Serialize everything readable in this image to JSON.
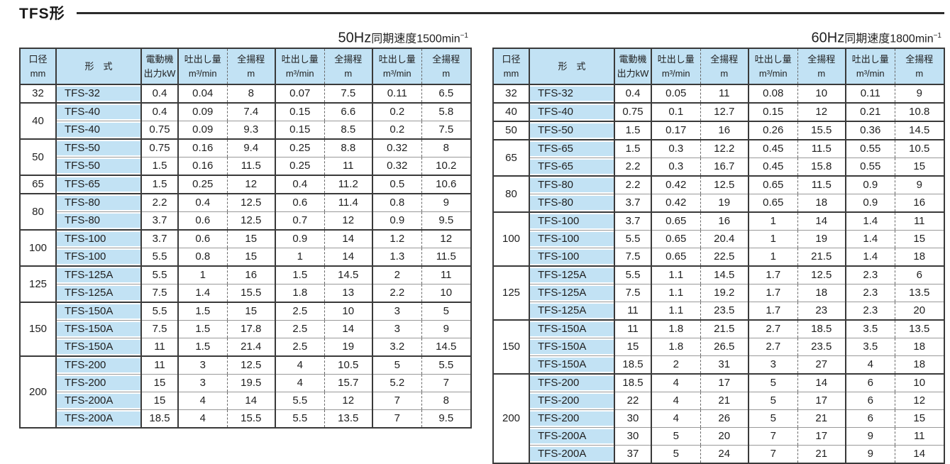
{
  "page": {
    "title": "TFS形"
  },
  "colors": {
    "table_header_bg": "#c2e2f4",
    "border_dark": "#3a3a3a",
    "row_divider": "#999999",
    "dashed_divider": "#666666",
    "text": "#1f1f1f",
    "rule": "#2b2b2b"
  },
  "header_labels": {
    "bore": [
      "口径",
      "mm"
    ],
    "model": "形　式",
    "motor": [
      "電動機",
      "出力kW"
    ],
    "discharge": [
      "吐出し量",
      "m³/min"
    ],
    "head": [
      "全揚程",
      "m"
    ]
  },
  "tables": [
    {
      "id": "50hz",
      "subtitle": {
        "freq": "50Hz",
        "label": "同期速度",
        "speed": "1500min",
        "sup": "−1"
      },
      "groups": [
        {
          "bore": "32",
          "rows": [
            [
              "TFS-32",
              "0.4",
              "0.04",
              "8",
              "0.07",
              "7.5",
              "0.11",
              "6.5"
            ]
          ]
        },
        {
          "bore": "40",
          "rows": [
            [
              "TFS-40",
              "0.4",
              "0.09",
              "7.4",
              "0.15",
              "6.6",
              "0.2",
              "5.8"
            ],
            [
              "TFS-40",
              "0.75",
              "0.09",
              "9.3",
              "0.15",
              "8.5",
              "0.2",
              "7.5"
            ]
          ]
        },
        {
          "bore": "50",
          "rows": [
            [
              "TFS-50",
              "0.75",
              "0.16",
              "9.4",
              "0.25",
              "8.8",
              "0.32",
              "8"
            ],
            [
              "TFS-50",
              "1.5",
              "0.16",
              "11.5",
              "0.25",
              "11",
              "0.32",
              "10.2"
            ]
          ]
        },
        {
          "bore": "65",
          "rows": [
            [
              "TFS-65",
              "1.5",
              "0.25",
              "12",
              "0.4",
              "11.2",
              "0.5",
              "10.6"
            ]
          ]
        },
        {
          "bore": "80",
          "rows": [
            [
              "TFS-80",
              "2.2",
              "0.4",
              "12.5",
              "0.6",
              "11.4",
              "0.8",
              "9"
            ],
            [
              "TFS-80",
              "3.7",
              "0.6",
              "12.5",
              "0.7",
              "12",
              "0.9",
              "9.5"
            ]
          ]
        },
        {
          "bore": "100",
          "rows": [
            [
              "TFS-100",
              "3.7",
              "0.6",
              "15",
              "0.9",
              "14",
              "1.2",
              "12"
            ],
            [
              "TFS-100",
              "5.5",
              "0.8",
              "15",
              "1",
              "14",
              "1.3",
              "11.5"
            ]
          ]
        },
        {
          "bore": "125",
          "rows": [
            [
              "TFS-125A",
              "5.5",
              "1",
              "16",
              "1.5",
              "14.5",
              "2",
              "11"
            ],
            [
              "TFS-125A",
              "7.5",
              "1.4",
              "15.5",
              "1.8",
              "13",
              "2.2",
              "10"
            ]
          ]
        },
        {
          "bore": "150",
          "rows": [
            [
              "TFS-150A",
              "5.5",
              "1.5",
              "15",
              "2.5",
              "10",
              "3",
              "5"
            ],
            [
              "TFS-150A",
              "7.5",
              "1.5",
              "17.8",
              "2.5",
              "14",
              "3",
              "9"
            ],
            [
              "TFS-150A",
              "11",
              "1.5",
              "21.4",
              "2.5",
              "19",
              "3.2",
              "14.5"
            ]
          ]
        },
        {
          "bore": "200",
          "rows": [
            [
              "TFS-200",
              "11",
              "3",
              "12.5",
              "4",
              "10.5",
              "5",
              "5.5"
            ],
            [
              "TFS-200",
              "15",
              "3",
              "19.5",
              "4",
              "15.7",
              "5.2",
              "7"
            ],
            [
              "TFS-200A",
              "15",
              "4",
              "14",
              "5.5",
              "12",
              "7",
              "8"
            ],
            [
              "TFS-200A",
              "18.5",
              "4",
              "15.5",
              "5.5",
              "13.5",
              "7",
              "9.5"
            ]
          ]
        }
      ]
    },
    {
      "id": "60hz",
      "subtitle": {
        "freq": "60Hz",
        "label": "同期速度",
        "speed": "1800min",
        "sup": "−1"
      },
      "groups": [
        {
          "bore": "32",
          "rows": [
            [
              "TFS-32",
              "0.4",
              "0.05",
              "11",
              "0.08",
              "10",
              "0.11",
              "9"
            ]
          ]
        },
        {
          "bore": "40",
          "rows": [
            [
              "TFS-40",
              "0.75",
              "0.1",
              "12.7",
              "0.15",
              "12",
              "0.21",
              "10.8"
            ]
          ]
        },
        {
          "bore": "50",
          "rows": [
            [
              "TFS-50",
              "1.5",
              "0.17",
              "16",
              "0.26",
              "15.5",
              "0.36",
              "14.5"
            ]
          ]
        },
        {
          "bore": "65",
          "rows": [
            [
              "TFS-65",
              "1.5",
              "0.3",
              "12.2",
              "0.45",
              "11.5",
              "0.55",
              "10.5"
            ],
            [
              "TFS-65",
              "2.2",
              "0.3",
              "16.7",
              "0.45",
              "15.8",
              "0.55",
              "15"
            ]
          ]
        },
        {
          "bore": "80",
          "rows": [
            [
              "TFS-80",
              "2.2",
              "0.42",
              "12.5",
              "0.65",
              "11.5",
              "0.9",
              "9"
            ],
            [
              "TFS-80",
              "3.7",
              "0.42",
              "19",
              "0.65",
              "18",
              "0.9",
              "16"
            ]
          ]
        },
        {
          "bore": "100",
          "rows": [
            [
              "TFS-100",
              "3.7",
              "0.65",
              "16",
              "1",
              "14",
              "1.4",
              "11"
            ],
            [
              "TFS-100",
              "5.5",
              "0.65",
              "20.4",
              "1",
              "19",
              "1.4",
              "15"
            ],
            [
              "TFS-100",
              "7.5",
              "0.65",
              "22.5",
              "1",
              "21.5",
              "1.4",
              "18"
            ]
          ]
        },
        {
          "bore": "125",
          "rows": [
            [
              "TFS-125A",
              "5.5",
              "1.1",
              "14.5",
              "1.7",
              "12.5",
              "2.3",
              "6"
            ],
            [
              "TFS-125A",
              "7.5",
              "1.1",
              "19.2",
              "1.7",
              "18",
              "2.3",
              "13.5"
            ],
            [
              "TFS-125A",
              "11",
              "1.1",
              "23.5",
              "1.7",
              "23",
              "2.3",
              "20"
            ]
          ]
        },
        {
          "bore": "150",
          "rows": [
            [
              "TFS-150A",
              "11",
              "1.8",
              "21.5",
              "2.7",
              "18.5",
              "3.5",
              "13.5"
            ],
            [
              "TFS-150A",
              "15",
              "1.8",
              "26.5",
              "2.7",
              "23.5",
              "3.5",
              "18"
            ],
            [
              "TFS-150A",
              "18.5",
              "2",
              "31",
              "3",
              "27",
              "4",
              "18"
            ]
          ]
        },
        {
          "bore": "200",
          "rows": [
            [
              "TFS-200",
              "18.5",
              "4",
              "17",
              "5",
              "14",
              "6",
              "10"
            ],
            [
              "TFS-200",
              "22",
              "4",
              "21",
              "5",
              "17",
              "6",
              "12"
            ],
            [
              "TFS-200",
              "30",
              "4",
              "26",
              "5",
              "21",
              "6",
              "15"
            ],
            [
              "TFS-200A",
              "30",
              "5",
              "20",
              "7",
              "17",
              "9",
              "11"
            ],
            [
              "TFS-200A",
              "37",
              "5",
              "24",
              "7",
              "21",
              "9",
              "14"
            ]
          ]
        }
      ]
    }
  ]
}
